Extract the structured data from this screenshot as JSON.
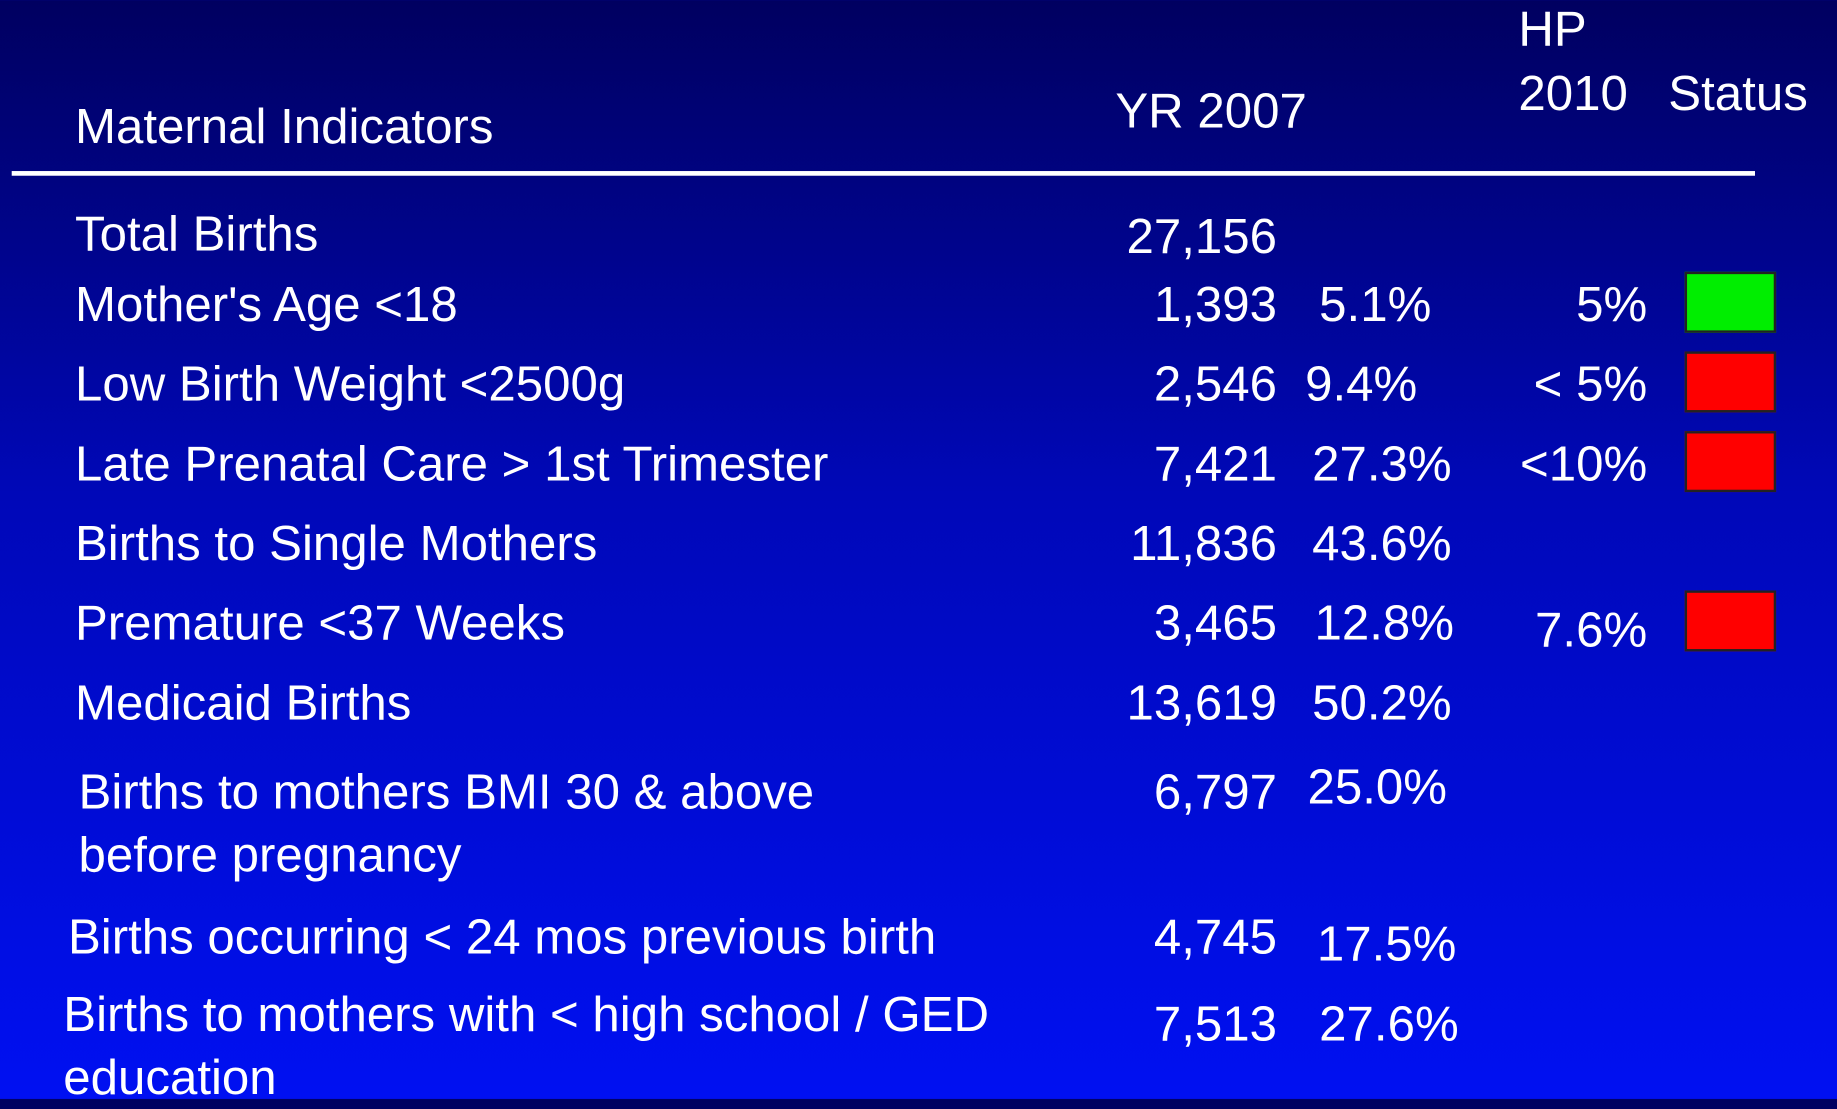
{
  "header": {
    "indicator": "Maternal Indicators",
    "year": "YR 2007",
    "target_line1": "HP",
    "target_line2": "2010",
    "status": "Status"
  },
  "rows": [
    {
      "label": "Total Births",
      "count": "27,156",
      "percent": null,
      "target": null,
      "status": null
    },
    {
      "label": "Mother's Age <18",
      "count": "1,393",
      "percent": "5.1%",
      "target": "5%",
      "status": "#00ee00"
    },
    {
      "label": "Low Birth Weight <2500g",
      "count": "2,546",
      "percent": "9.4%",
      "target": "< 5%",
      "status": "#ff0000"
    },
    {
      "label": "Late Prenatal Care > 1st Trimester",
      "count": "7,421",
      "percent": "27.3%",
      "target": "<10%",
      "status": "#ff0000"
    },
    {
      "label": "Births to Single Mothers",
      "count": "11,836",
      "percent": "43.6%",
      "target": null,
      "status": null
    },
    {
      "label": "Premature <37 Weeks",
      "count": "3,465",
      "percent": "12.8%",
      "target": "7.6%",
      "status": "#ff0000"
    },
    {
      "label": "Medicaid Births",
      "count": "13,619",
      "percent": "50.2%",
      "target": null,
      "status": null
    },
    {
      "label": "Births to mothers BMI 30 & above before pregnancy",
      "count": "6,797",
      "percent": "25.0%",
      "target": null,
      "status": null
    },
    {
      "label": "Births occurring < 24 mos previous birth",
      "count": "4,745",
      "percent": "17.5%",
      "target": null,
      "status": null
    },
    {
      "label": "Births to mothers with < high school / GED education",
      "count": "7,513",
      "percent": "27.6%",
      "target": null,
      "status": null
    }
  ]
}
